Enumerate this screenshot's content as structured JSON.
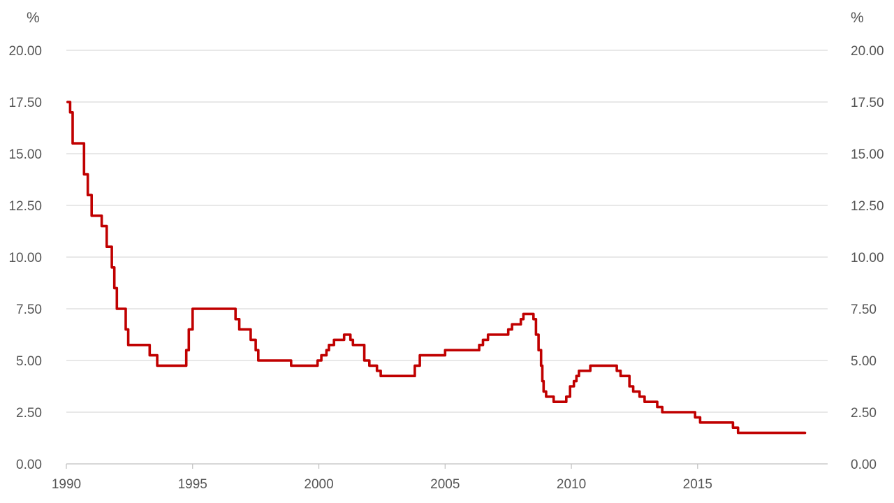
{
  "chart_data": {
    "type": "line",
    "title": "",
    "xlabel": "",
    "ylabel_left": "%",
    "ylabel_right": "%",
    "xlim": [
      1990,
      2019.3
    ],
    "ylim": [
      0,
      20
    ],
    "x_ticks": [
      1990,
      1995,
      2000,
      2005,
      2010,
      2015
    ],
    "x_tick_labels": [
      "1990",
      "1995",
      "2000",
      "2005",
      "2010",
      "2015"
    ],
    "y_ticks": [
      0,
      2.5,
      5,
      7.5,
      10,
      12.5,
      15,
      17.5,
      20
    ],
    "y_tick_labels": [
      "0.00",
      "2.50",
      "5.00",
      "7.50",
      "10.00",
      "12.50",
      "15.00",
      "17.50",
      "20.00"
    ],
    "grid": true,
    "color": "#c00000",
    "series": [
      {
        "name": "",
        "style": "step",
        "x": [
          1990.05,
          1990.15,
          1990.25,
          1990.55,
          1990.7,
          1990.85,
          1991.0,
          1991.3,
          1991.4,
          1991.6,
          1991.8,
          1991.9,
          1992.0,
          1992.2,
          1992.35,
          1992.45,
          1993.0,
          1993.3,
          1993.6,
          1994.6,
          1994.75,
          1994.85,
          1995.0,
          1996.5,
          1996.7,
          1996.85,
          1997.3,
          1997.5,
          1997.6,
          1998.7,
          1998.9,
          1999.8,
          1999.95,
          2000.1,
          2000.3,
          2000.4,
          2000.6,
          2001.0,
          2001.1,
          2001.25,
          2001.35,
          2001.8,
          2002.0,
          2002.3,
          2002.45,
          2003.8,
          2004.0,
          2004.8,
          2005.0,
          2006.2,
          2006.35,
          2006.5,
          2006.7,
          2007.3,
          2007.5,
          2007.65,
          2007.85,
          2008.0,
          2008.1,
          2008.3,
          2008.5,
          2008.6,
          2008.7,
          2008.8,
          2008.85,
          2008.9,
          2009.0,
          2009.3,
          2009.45,
          2009.8,
          2009.95,
          2010.1,
          2010.2,
          2010.3,
          2010.75,
          2010.85,
          2011.8,
          2011.95,
          2012.3,
          2012.45,
          2012.7,
          2012.9,
          2013.0,
          2013.4,
          2013.6,
          2013.8,
          2014.9,
          2015.1,
          2015.3,
          2016.4,
          2016.6,
          2016.75,
          2019.25
        ],
        "y": [
          17.5,
          17.0,
          15.5,
          15.5,
          14.0,
          13.0,
          12.0,
          12.0,
          11.5,
          10.5,
          9.5,
          8.5,
          7.5,
          7.5,
          6.5,
          5.75,
          5.75,
          5.25,
          4.75,
          4.75,
          5.5,
          6.5,
          7.5,
          7.5,
          7.0,
          6.5,
          6.0,
          5.5,
          5.0,
          5.0,
          4.75,
          4.75,
          5.0,
          5.25,
          5.5,
          5.75,
          6.0,
          6.25,
          6.25,
          6.0,
          5.75,
          5.0,
          4.75,
          4.5,
          4.25,
          4.75,
          5.25,
          5.25,
          5.5,
          5.5,
          5.75,
          6.0,
          6.25,
          6.25,
          6.5,
          6.75,
          6.75,
          7.0,
          7.25,
          7.25,
          7.0,
          6.25,
          5.5,
          4.75,
          4.0,
          3.5,
          3.25,
          3.0,
          3.0,
          3.25,
          3.75,
          4.0,
          4.25,
          4.5,
          4.75,
          4.75,
          4.5,
          4.25,
          3.75,
          3.5,
          3.25,
          3.0,
          3.0,
          2.75,
          2.5,
          2.5,
          2.25,
          2.0,
          2.0,
          1.75,
          1.5,
          1.5,
          1.5
        ]
      }
    ]
  }
}
